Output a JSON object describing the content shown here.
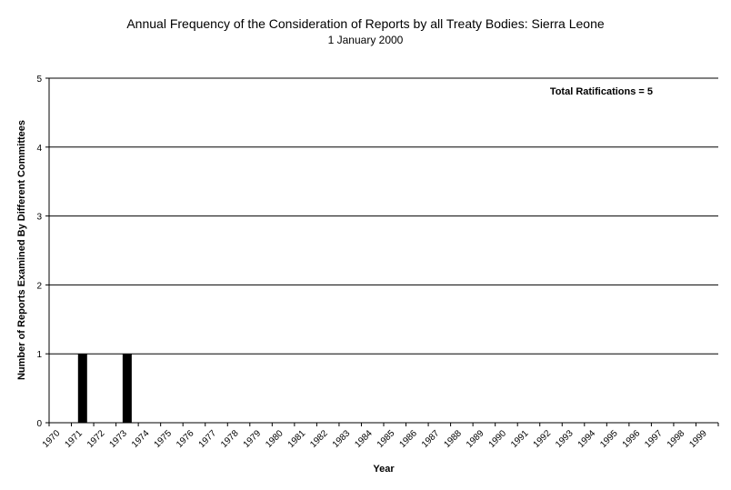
{
  "chart_data": {
    "type": "bar",
    "title": "Annual Frequency of the Consideration of Reports by all Treaty Bodies: Sierra Leone",
    "subtitle": "1 January 2000",
    "xlabel": "Year",
    "ylabel": "Number of Reports Examined By Different Committees",
    "categories": [
      "1970",
      "1971",
      "1972",
      "1973",
      "1974",
      "1975",
      "1976",
      "1977",
      "1978",
      "1979",
      "1980",
      "1981",
      "1982",
      "1983",
      "1984",
      "1985",
      "1986",
      "1987",
      "1988",
      "1989",
      "1990",
      "1991",
      "1992",
      "1993",
      "1994",
      "1995",
      "1996",
      "1997",
      "1998",
      "1999"
    ],
    "values": [
      0,
      1,
      0,
      1,
      0,
      0,
      0,
      0,
      0,
      0,
      0,
      0,
      0,
      0,
      0,
      0,
      0,
      0,
      0,
      0,
      0,
      0,
      0,
      0,
      0,
      0,
      0,
      0,
      0,
      0
    ],
    "ylim": [
      0,
      5
    ],
    "yticks": [
      0,
      1,
      2,
      3,
      4,
      5
    ],
    "grid": true,
    "annotation": "Total Ratifications = 5",
    "bar_color": "#000000",
    "axis_color": "#000000"
  }
}
